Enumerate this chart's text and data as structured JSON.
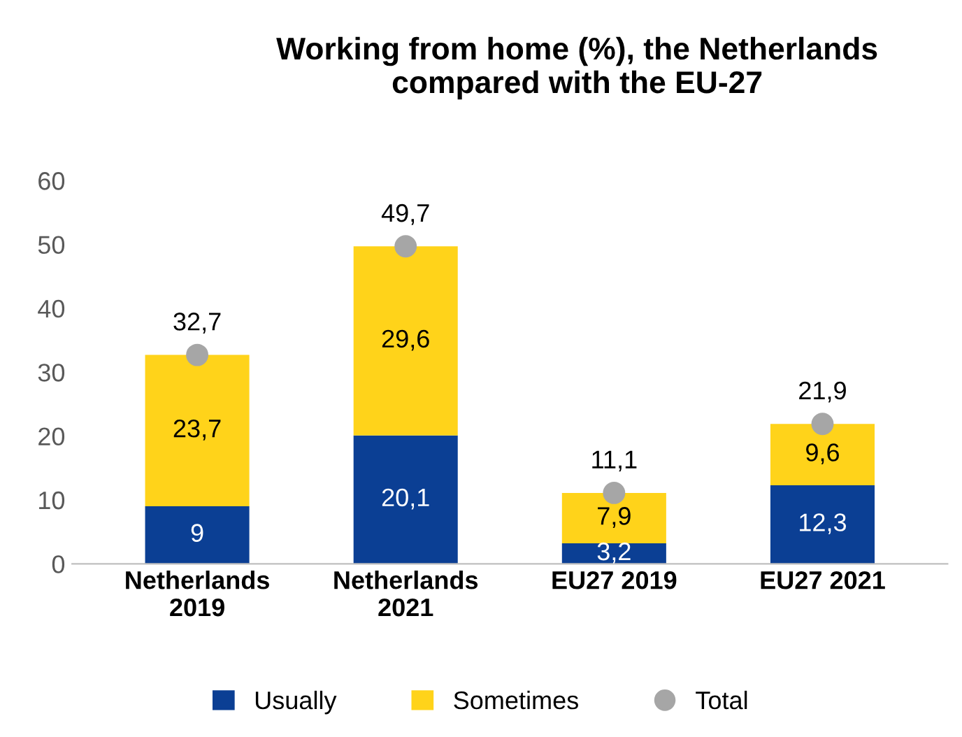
{
  "chart_data": {
    "type": "bar",
    "title": "Working from home (%), the Netherlands\ncompared with the EU-27",
    "categories": [
      "Netherlands\n2019",
      "Netherlands\n2021",
      "EU27 2019",
      "EU27 2021"
    ],
    "stacked": true,
    "series": [
      {
        "name": "Usually",
        "color": "#0b3f94",
        "values": [
          9,
          20.1,
          3.2,
          12.3
        ],
        "value_labels": [
          "9",
          "20,1",
          "3,2",
          "12,3"
        ]
      },
      {
        "name": "Sometimes",
        "color": "#ffd31a",
        "values": [
          23.7,
          29.6,
          7.9,
          9.6
        ],
        "value_labels": [
          "23,7",
          "29,6",
          "7,9",
          "9,6"
        ]
      },
      {
        "name": "Total",
        "type": "scatter",
        "color": "#a6a6a6",
        "marker": "circle",
        "values": [
          32.7,
          49.7,
          11.1,
          21.9
        ],
        "value_labels": [
          "32,7",
          "49,7",
          "11,1",
          "21,9"
        ]
      }
    ],
    "ylim": [
      0,
      60
    ],
    "yticks": [
      0,
      10,
      20,
      30,
      40,
      50,
      60
    ],
    "grid": false,
    "legend": "bottom"
  }
}
